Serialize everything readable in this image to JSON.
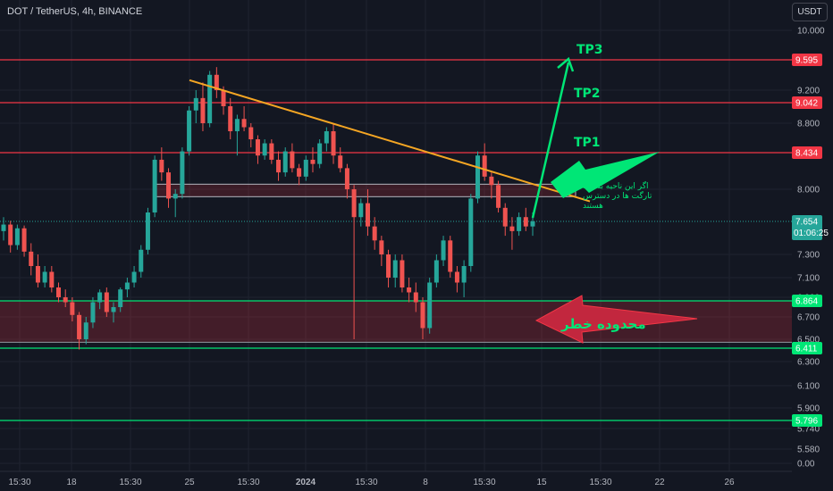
{
  "header": {
    "symbol_line": "DOT / TetherUS, 4h, BINANCE",
    "currency_button": "USDT"
  },
  "annotations": {
    "tp1": "TP1",
    "tp2": "TP2",
    "tp3": "TP3",
    "note_lines": [
      "اگر این ناحیه بشکند",
      "تارگت ها در دسترس",
      "هستند"
    ],
    "danger_zone": "محدوده خطر"
  },
  "colors": {
    "up": "#26a69a",
    "down": "#ef5350",
    "resistance": "#f23645",
    "support": "#00e676",
    "trendline": "#f5a623",
    "current": "#26a69a"
  },
  "chart_data": {
    "type": "candlestick",
    "y_axis": {
      "min": 0.0,
      "max": 10.0,
      "tick_labels": [
        "10.000",
        "9.200",
        "8.800",
        "8.000",
        "7.300",
        "7.100",
        "6.900",
        "6.700",
        "6.500",
        "6.300",
        "6.100",
        "5.900",
        "5.740",
        "5.580",
        "0.00"
      ],
      "tick_values": [
        10.0,
        9.2,
        8.8,
        8.0,
        7.3,
        7.1,
        6.9,
        6.7,
        6.5,
        6.3,
        6.1,
        5.9,
        5.74,
        5.58,
        0.0
      ]
    },
    "x_axis": {
      "tick_labels": [
        "15:30",
        "18",
        "15:30",
        "25",
        "15:30",
        "2024",
        "15:30",
        "8",
        "15:30",
        "15",
        "15:30",
        "22",
        "26"
      ]
    },
    "price_levels": [
      {
        "label": "9.595",
        "value": 9.595,
        "kind": "resistance"
      },
      {
        "label": "9.042",
        "value": 9.042,
        "kind": "resistance"
      },
      {
        "label": "8.434",
        "value": 8.434,
        "kind": "resistance"
      },
      {
        "label": "6.864",
        "value": 6.864,
        "kind": "support"
      },
      {
        "label": "6.411",
        "value": 6.411,
        "kind": "support"
      },
      {
        "label": "5.796",
        "value": 5.796,
        "kind": "support"
      }
    ],
    "current_price": {
      "label": "7.654",
      "value": 7.654,
      "countdown": "01:06:25"
    },
    "resistance_box": {
      "low": 7.92,
      "high": 8.06
    },
    "danger_zone": {
      "low": 6.47,
      "high": 6.86
    },
    "trendline": {
      "start": 9.33,
      "end": 7.87
    },
    "candles": [
      [
        7.55,
        7.7,
        7.45,
        7.62
      ],
      [
        7.62,
        7.66,
        7.32,
        7.4
      ],
      [
        7.4,
        7.62,
        7.35,
        7.58
      ],
      [
        7.58,
        7.61,
        7.28,
        7.33
      ],
      [
        7.33,
        7.42,
        7.12,
        7.2
      ],
      [
        7.2,
        7.3,
        7.0,
        7.05
      ],
      [
        7.05,
        7.2,
        7.0,
        7.15
      ],
      [
        7.15,
        7.2,
        6.95,
        7.0
      ],
      [
        7.0,
        7.05,
        6.85,
        6.9
      ],
      [
        6.9,
        6.98,
        6.8,
        6.85
      ],
      [
        6.85,
        6.9,
        6.66,
        6.72
      ],
      [
        6.72,
        6.75,
        6.4,
        6.5
      ],
      [
        6.5,
        6.7,
        6.45,
        6.65
      ],
      [
        6.65,
        6.9,
        6.6,
        6.85
      ],
      [
        6.85,
        6.98,
        6.78,
        6.95
      ],
      [
        6.95,
        7.0,
        6.7,
        6.75
      ],
      [
        6.75,
        6.85,
        6.65,
        6.8
      ],
      [
        6.8,
        7.0,
        6.75,
        6.98
      ],
      [
        6.98,
        7.1,
        6.9,
        7.05
      ],
      [
        7.05,
        7.2,
        7.0,
        7.15
      ],
      [
        7.15,
        7.4,
        7.1,
        7.35
      ],
      [
        7.35,
        7.8,
        7.3,
        7.75
      ],
      [
        7.75,
        8.4,
        7.7,
        8.35
      ],
      [
        8.35,
        8.5,
        8.1,
        8.2
      ],
      [
        8.2,
        8.25,
        7.8,
        7.9
      ],
      [
        7.9,
        8.0,
        7.7,
        7.95
      ],
      [
        7.95,
        8.5,
        7.9,
        8.45
      ],
      [
        8.45,
        9.0,
        8.4,
        8.95
      ],
      [
        8.95,
        9.2,
        8.8,
        9.1
      ],
      [
        9.1,
        9.3,
        8.7,
        8.8
      ],
      [
        8.8,
        9.45,
        8.75,
        9.4
      ],
      [
        9.4,
        9.5,
        9.1,
        9.2
      ],
      [
        9.2,
        9.25,
        8.9,
        9.0
      ],
      [
        9.0,
        9.1,
        8.6,
        8.7
      ],
      [
        8.7,
        8.9,
        8.4,
        8.85
      ],
      [
        8.85,
        9.0,
        8.7,
        8.75
      ],
      [
        8.75,
        8.8,
        8.5,
        8.6
      ],
      [
        8.6,
        8.65,
        8.3,
        8.4
      ],
      [
        8.4,
        8.6,
        8.35,
        8.55
      ],
      [
        8.55,
        8.6,
        8.3,
        8.35
      ],
      [
        8.35,
        8.45,
        8.1,
        8.2
      ],
      [
        8.2,
        8.5,
        8.15,
        8.45
      ],
      [
        8.45,
        8.55,
        8.2,
        8.25
      ],
      [
        8.25,
        8.3,
        8.05,
        8.15
      ],
      [
        8.15,
        8.4,
        8.1,
        8.35
      ],
      [
        8.35,
        8.5,
        8.2,
        8.3
      ],
      [
        8.3,
        8.6,
        8.25,
        8.55
      ],
      [
        8.55,
        8.75,
        8.45,
        8.7
      ],
      [
        8.7,
        8.8,
        8.3,
        8.4
      ],
      [
        8.4,
        8.5,
        8.2,
        8.25
      ],
      [
        8.25,
        8.3,
        7.9,
        8.0
      ],
      [
        8.0,
        8.05,
        6.5,
        7.7
      ],
      [
        7.7,
        7.9,
        7.6,
        7.85
      ],
      [
        7.85,
        8.0,
        7.5,
        7.6
      ],
      [
        7.6,
        7.7,
        7.35,
        7.45
      ],
      [
        7.45,
        7.5,
        7.2,
        7.3
      ],
      [
        7.3,
        7.35,
        7.0,
        7.1
      ],
      [
        7.1,
        7.3,
        7.0,
        7.25
      ],
      [
        7.25,
        7.3,
        6.95,
        7.0
      ],
      [
        7.0,
        7.1,
        6.85,
        6.95
      ],
      [
        6.95,
        7.05,
        6.75,
        6.85
      ],
      [
        6.85,
        6.9,
        6.5,
        6.6
      ],
      [
        6.6,
        7.1,
        6.55,
        7.05
      ],
      [
        7.05,
        7.3,
        7.0,
        7.25
      ],
      [
        7.25,
        7.5,
        7.2,
        7.45
      ],
      [
        7.45,
        7.5,
        7.1,
        7.15
      ],
      [
        7.15,
        7.2,
        6.95,
        7.05
      ],
      [
        7.05,
        7.25,
        6.9,
        7.2
      ],
      [
        7.2,
        7.95,
        7.15,
        7.9
      ],
      [
        7.9,
        8.45,
        7.85,
        8.4
      ],
      [
        8.4,
        8.55,
        8.1,
        8.15
      ],
      [
        8.15,
        8.2,
        7.9,
        8.05
      ],
      [
        8.05,
        8.1,
        7.75,
        7.8
      ],
      [
        7.8,
        7.85,
        7.5,
        7.6
      ],
      [
        7.6,
        7.7,
        7.35,
        7.55
      ],
      [
        7.55,
        7.75,
        7.5,
        7.7
      ],
      [
        7.7,
        7.8,
        7.55,
        7.6
      ],
      [
        7.6,
        7.75,
        7.5,
        7.654
      ]
    ]
  }
}
